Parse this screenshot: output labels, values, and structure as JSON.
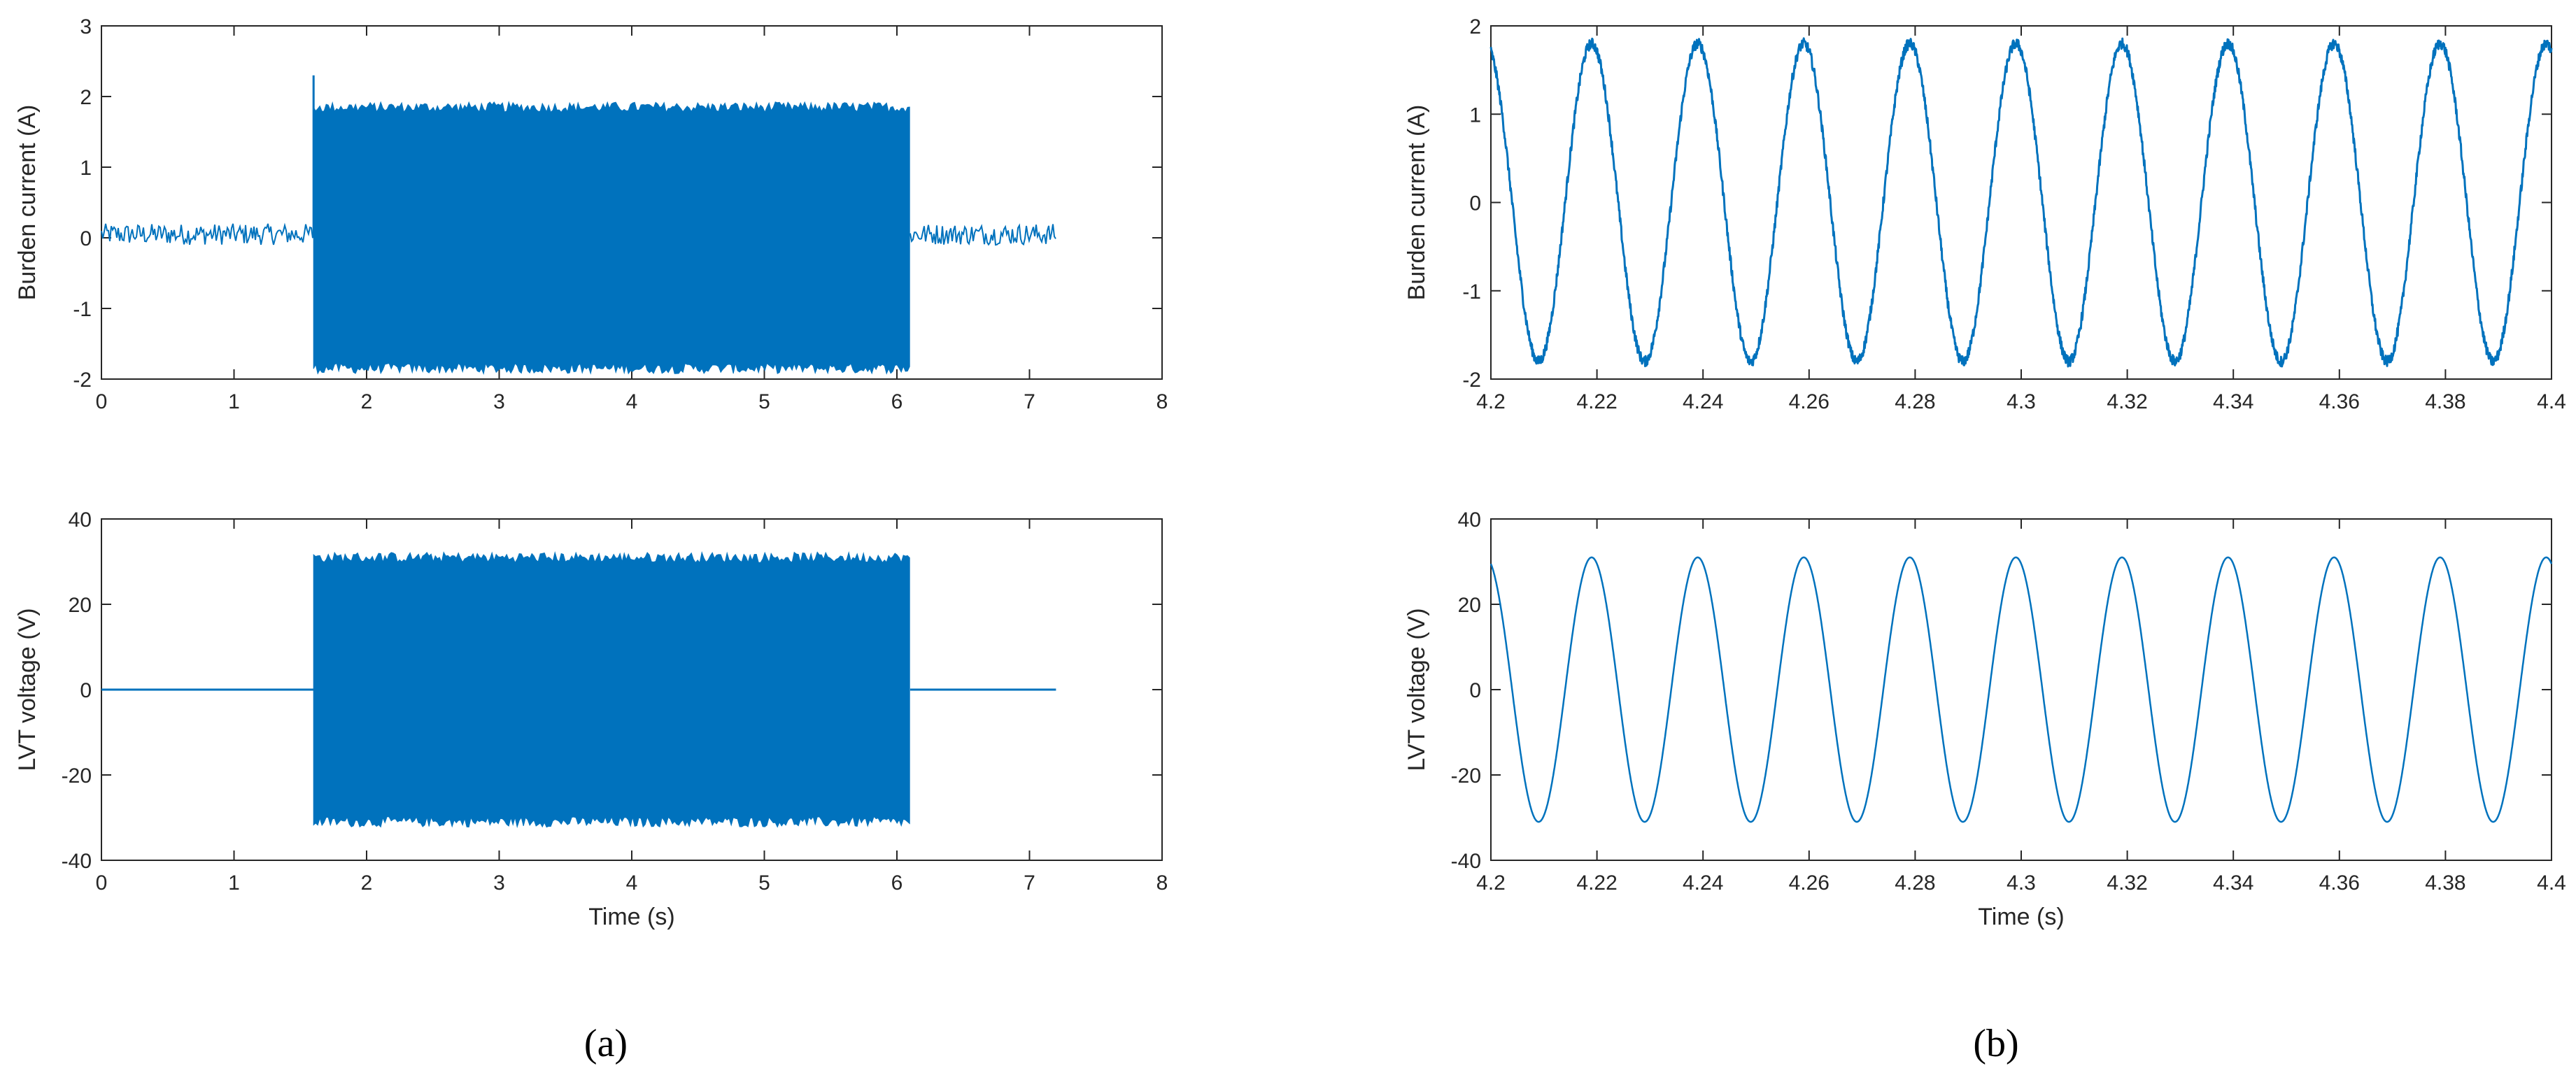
{
  "figure": {
    "panel_labels": [
      "(a)",
      "(b)"
    ],
    "colors": {
      "line": "#0072BD",
      "axes": "#262626",
      "background": "#ffffff"
    }
  },
  "chart_data": [
    {
      "id": "a-top",
      "type": "line",
      "ylabel": "Burden current (A)",
      "xlabel": "",
      "xlim": [
        0,
        8
      ],
      "ylim": [
        -2,
        3
      ],
      "xticks": [
        0,
        1,
        2,
        3,
        4,
        5,
        6,
        7,
        8
      ],
      "xtick_labels": [
        "0",
        "1",
        "2",
        "3",
        "4",
        "5",
        "6",
        "7",
        "8"
      ],
      "yticks": [
        -2,
        -1,
        0,
        1,
        2,
        3
      ],
      "ytick_labels": [
        "-2",
        "-1",
        "0",
        "1",
        "2",
        "3"
      ],
      "series": [
        {
          "signal": "envelope",
          "segments": [
            {
              "x_start": 0,
              "x_end": 1.6,
              "amplitude": 0.15,
              "center": 0.05
            },
            {
              "x_start": 1.6,
              "x_end": 6.1,
              "amplitude": 1.85,
              "center": 0
            },
            {
              "x_start": 6.1,
              "x_end": 7.2,
              "amplitude": 0.15,
              "center": 0.05
            }
          ],
          "peak": {
            "x": 1.6,
            "y": 2.3
          }
        }
      ]
    },
    {
      "id": "a-bottom",
      "type": "line",
      "ylabel": "LVT voltage (V)",
      "xlabel": "Time (s)",
      "xlim": [
        0,
        8
      ],
      "ylim": [
        -40,
        40
      ],
      "xticks": [
        0,
        1,
        2,
        3,
        4,
        5,
        6,
        7,
        8
      ],
      "xtick_labels": [
        "0",
        "1",
        "2",
        "3",
        "4",
        "5",
        "6",
        "7",
        "8"
      ],
      "yticks": [
        -40,
        -20,
        0,
        20,
        40
      ],
      "ytick_labels": [
        "-40",
        "-20",
        "0",
        "20",
        "40"
      ],
      "series": [
        {
          "signal": "envelope",
          "segments": [
            {
              "x_start": 0,
              "x_end": 1.6,
              "amplitude": 0,
              "center": 0
            },
            {
              "x_start": 1.6,
              "x_end": 6.1,
              "amplitude": 31,
              "center": 0
            },
            {
              "x_start": 6.1,
              "x_end": 7.2,
              "amplitude": 0,
              "center": 0
            }
          ]
        }
      ]
    },
    {
      "id": "b-top",
      "type": "line",
      "ylabel": "Burden current (A)",
      "xlabel": "",
      "xlim": [
        4.2,
        4.4
      ],
      "ylim": [
        -2,
        2
      ],
      "xticks": [
        4.2,
        4.22,
        4.24,
        4.26,
        4.28,
        4.3,
        4.32,
        4.34,
        4.36,
        4.38,
        4.4
      ],
      "xtick_labels": [
        "4.2",
        "4.22",
        "4.24",
        "4.26",
        "4.28",
        "4.3",
        "4.32",
        "4.34",
        "4.36",
        "4.38",
        "4.4"
      ],
      "yticks": [
        -2,
        -1,
        0,
        1,
        2
      ],
      "ytick_labels": [
        "-2",
        "-1",
        "0",
        "1",
        "2"
      ],
      "series": [
        {
          "signal": "sine",
          "frequency_hz": 50,
          "amplitude": 1.8,
          "first_peak_x": 4.219,
          "noise": 0.06
        }
      ]
    },
    {
      "id": "b-bottom",
      "type": "line",
      "ylabel": "LVT voltage (V)",
      "xlabel": "Time (s)",
      "xlim": [
        4.2,
        4.4
      ],
      "ylim": [
        -40,
        40
      ],
      "xticks": [
        4.2,
        4.22,
        4.24,
        4.26,
        4.28,
        4.3,
        4.32,
        4.34,
        4.36,
        4.38,
        4.4
      ],
      "xtick_labels": [
        "4.2",
        "4.22",
        "4.24",
        "4.26",
        "4.28",
        "4.3",
        "4.32",
        "4.34",
        "4.36",
        "4.38",
        "4.4"
      ],
      "yticks": [
        -40,
        -20,
        0,
        20,
        40
      ],
      "ytick_labels": [
        "-40",
        "-20",
        "0",
        "20",
        "40"
      ],
      "series": [
        {
          "signal": "sine",
          "frequency_hz": 50,
          "amplitude": 31,
          "first_peak_x": 4.219,
          "noise": 0
        }
      ]
    }
  ]
}
